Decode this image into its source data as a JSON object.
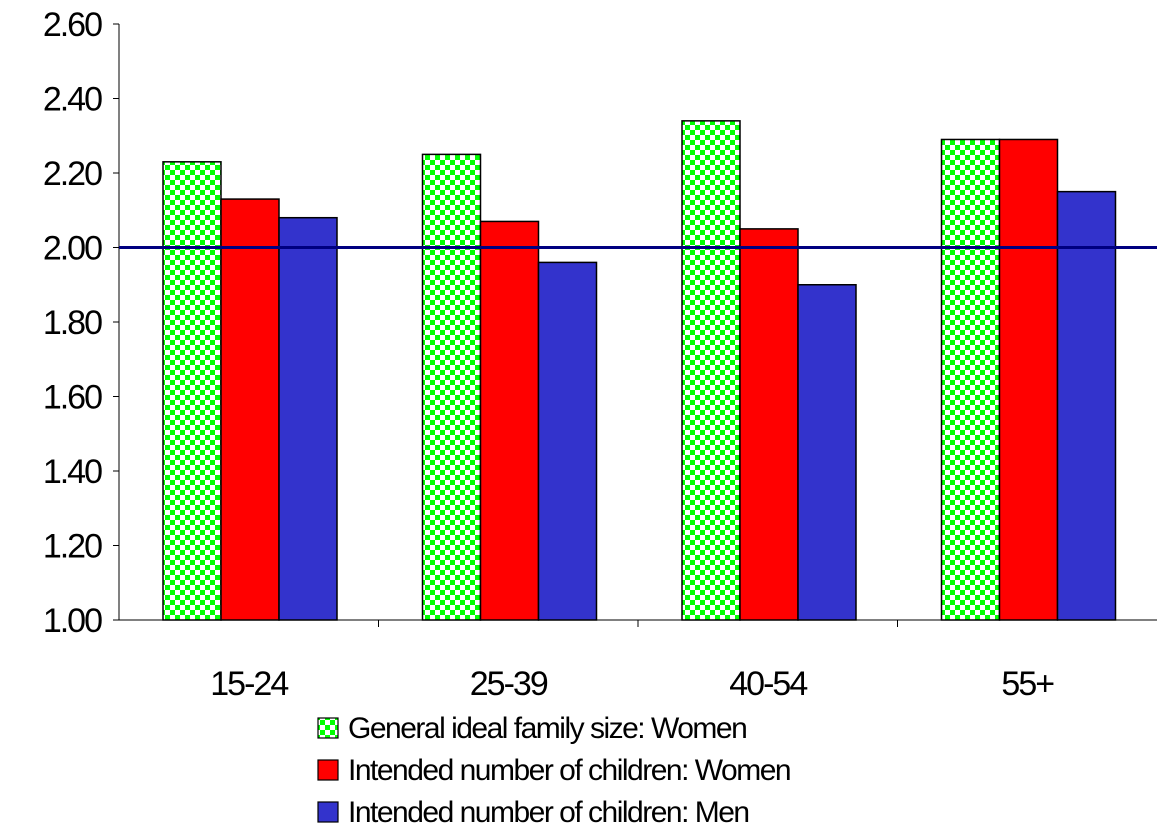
{
  "chart_data": {
    "type": "bar",
    "categories": [
      "15-24",
      "25-39",
      "40-54",
      "55+"
    ],
    "series": [
      {
        "name": "General ideal family size: Women",
        "values": [
          2.23,
          2.25,
          2.34,
          2.29
        ],
        "color": "#00ff00",
        "pattern": "checker"
      },
      {
        "name": "Intended number of children: Women",
        "values": [
          2.13,
          2.07,
          2.05,
          2.29
        ],
        "color": "#ff0000"
      },
      {
        "name": "Intended number of children: Men",
        "values": [
          2.08,
          1.96,
          1.9,
          2.15
        ],
        "color": "#3333cc"
      }
    ],
    "ylim": [
      1.0,
      2.6
    ],
    "yticks": [
      "1.00",
      "1.20",
      "1.40",
      "1.60",
      "1.80",
      "2.00",
      "2.20",
      "2.40",
      "2.60"
    ],
    "reference_line": {
      "value": 2.0,
      "color": "#000080"
    },
    "grid": false,
    "legend_position": "bottom"
  }
}
